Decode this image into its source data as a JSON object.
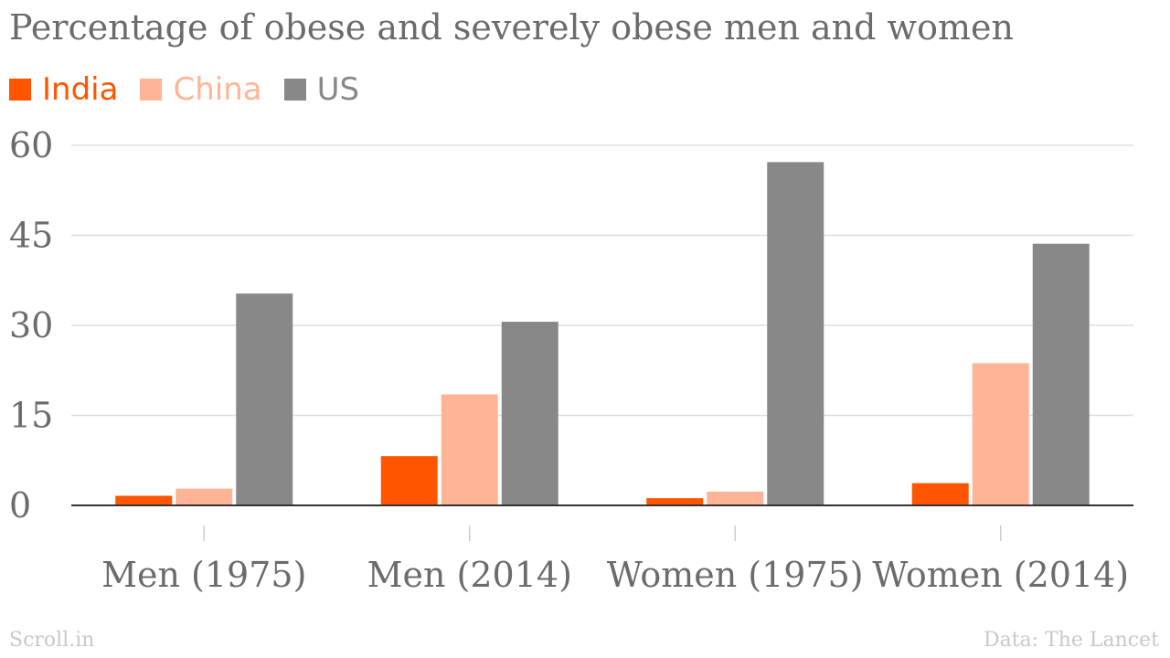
{
  "chart_data": {
    "type": "bar",
    "title": "Percentage of obese and severely obese men and women",
    "categories": [
      "Men (1975)",
      "Men (2014)",
      "Women (1975)",
      "Women (2014)"
    ],
    "series": [
      {
        "name": "India",
        "color": "#ff5500",
        "values": [
          1.6,
          8.2,
          1.2,
          3.7
        ]
      },
      {
        "name": "China",
        "color": "#ffb595",
        "values": [
          2.8,
          18.5,
          2.3,
          23.7
        ]
      },
      {
        "name": "US",
        "color": "#888888",
        "values": [
          35.3,
          30.6,
          57.2,
          43.6
        ]
      }
    ],
    "yticks": [
      0,
      15,
      30,
      45,
      60
    ],
    "ylim": [
      0,
      60
    ],
    "grid": true,
    "legend_position": "top-left",
    "source_left": "Scroll.in",
    "source_right": "Data: The Lancet"
  }
}
